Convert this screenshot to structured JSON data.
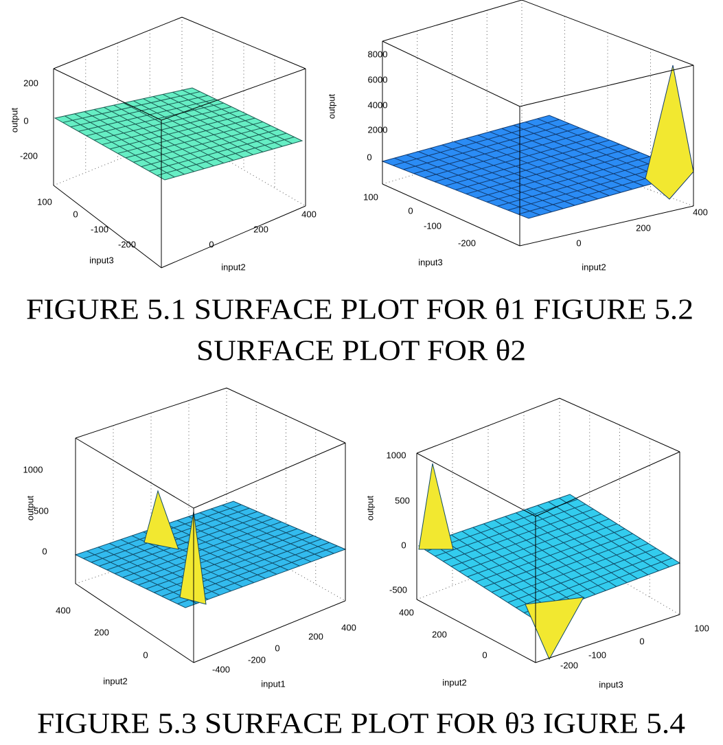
{
  "figures": [
    {
      "zlabel": "output",
      "xlabel": "input3",
      "ylabel": "input2",
      "zticks": [
        200,
        0,
        -200
      ],
      "xticks": [
        100,
        0,
        -100,
        -200
      ],
      "yticks": [
        0,
        200,
        400
      ]
    },
    {
      "zlabel": "output",
      "xlabel": "input3",
      "ylabel": "input2",
      "zticks": [
        8000,
        6000,
        4000,
        2000,
        0
      ],
      "xticks": [
        100,
        0,
        -100,
        -200
      ],
      "yticks": [
        0,
        200,
        400
      ]
    },
    {
      "zlabel": "output",
      "xlabel": "input2",
      "ylabel": "input1",
      "zticks": [
        1000,
        500,
        0
      ],
      "xticks": [
        400,
        200,
        0
      ],
      "yticks": [
        -400,
        -200,
        0,
        200,
        400
      ]
    },
    {
      "zlabel": "output",
      "xlabel": "input2",
      "ylabel": "input3",
      "zticks": [
        1000,
        500,
        0,
        -500
      ],
      "xticks": [
        400,
        200,
        0
      ],
      "yticks": [
        -200,
        -100,
        0,
        100
      ]
    }
  ],
  "captions": [
    "FIGURE 5.1 SURFACE PLOT FOR θ1   FIGURE 5.2",
    "SURFACE PLOT FOR θ2",
    "FIGURE 5.3 SURFACE PLOT FOR θ3 IGURE 5.4"
  ]
}
